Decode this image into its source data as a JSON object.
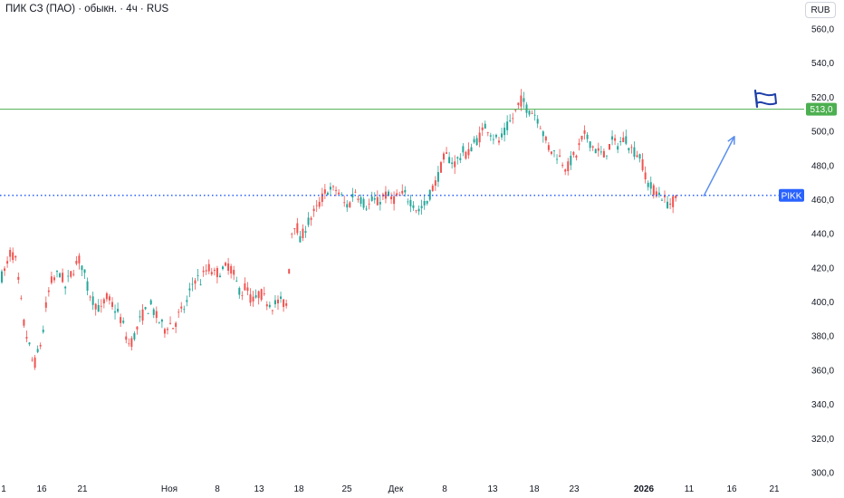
{
  "header": {
    "title": "ПИК СЗ (ПАО) · обыкн. · 4ч · RUS",
    "currency": "RUB"
  },
  "colors": {
    "up": "#26a69a",
    "down": "#ef5350",
    "resistance": "#4caf50",
    "support": "#2962ff",
    "arrow": "#5b8ff0",
    "flag": "#1e3fa8"
  },
  "icons": {
    "flag": "flag-icon"
  },
  "chart_data": {
    "type": "candlestick",
    "symbol_label": "PIKK",
    "y_axis": {
      "ticks": [
        "560,0",
        "540,0",
        "520,0",
        "500,0",
        "480,0",
        "460,0",
        "440,0",
        "420,0",
        "400,0",
        "380,0",
        "360,0",
        "340,0",
        "320,0",
        "300,0"
      ],
      "range": [
        300,
        560
      ]
    },
    "x_axis": {
      "ticks": [
        "1",
        "16",
        "21",
        "Ноя",
        "8",
        "13",
        "18",
        "25",
        "Дек",
        "8",
        "13",
        "18",
        "23",
        "2026",
        "11",
        "16",
        "21"
      ],
      "bold_ticks": [
        "2026"
      ]
    },
    "levels": [
      {
        "name": "resistance",
        "value": 513,
        "label": "513,0",
        "style": "solid"
      },
      {
        "name": "support",
        "value": 462.5,
        "label": "PIKK",
        "style": "dotted"
      }
    ],
    "projection_arrow": {
      "from": 462,
      "to": 497
    },
    "price_path": [
      [
        0,
        415
      ],
      [
        5,
        420
      ],
      [
        10,
        430
      ],
      [
        15,
        425
      ],
      [
        20,
        405
      ],
      [
        25,
        385
      ],
      [
        30,
        375
      ],
      [
        35,
        362
      ],
      [
        40,
        370
      ],
      [
        45,
        380
      ],
      [
        50,
        402
      ],
      [
        55,
        412
      ],
      [
        60,
        415
      ],
      [
        65,
        418
      ],
      [
        70,
        408
      ],
      [
        75,
        415
      ],
      [
        80,
        420
      ],
      [
        85,
        425
      ],
      [
        90,
        420
      ],
      [
        95,
        408
      ],
      [
        100,
        402
      ],
      [
        105,
        398
      ],
      [
        110,
        395
      ],
      [
        115,
        403
      ],
      [
        120,
        400
      ],
      [
        125,
        396
      ],
      [
        130,
        392
      ],
      [
        135,
        385
      ],
      [
        140,
        375
      ],
      [
        145,
        378
      ],
      [
        150,
        385
      ],
      [
        155,
        392
      ],
      [
        160,
        395
      ],
      [
        165,
        398
      ],
      [
        170,
        392
      ],
      [
        175,
        388
      ],
      [
        180,
        384
      ],
      [
        185,
        388
      ],
      [
        190,
        385
      ],
      [
        195,
        392
      ],
      [
        200,
        395
      ],
      [
        205,
        400
      ],
      [
        210,
        410
      ],
      [
        215,
        415
      ],
      [
        220,
        412
      ],
      [
        225,
        418
      ],
      [
        230,
        420
      ],
      [
        235,
        416
      ],
      [
        240,
        418
      ],
      [
        245,
        418
      ],
      [
        250,
        422
      ],
      [
        255,
        418
      ],
      [
        260,
        410
      ],
      [
        265,
        405
      ],
      [
        270,
        410
      ],
      [
        275,
        402
      ],
      [
        280,
        400
      ],
      [
        285,
        406
      ],
      [
        290,
        402
      ],
      [
        295,
        400
      ],
      [
        300,
        398
      ],
      [
        305,
        400
      ],
      [
        310,
        400
      ],
      [
        315,
        398
      ],
      [
        320,
        440
      ],
      [
        325,
        448
      ],
      [
        330,
        435
      ],
      [
        335,
        443
      ],
      [
        340,
        448
      ],
      [
        345,
        452
      ],
      [
        350,
        456
      ],
      [
        355,
        462
      ],
      [
        360,
        466
      ],
      [
        365,
        465
      ],
      [
        370,
        466
      ],
      [
        375,
        462
      ],
      [
        380,
        456
      ],
      [
        385,
        458
      ],
      [
        390,
        466
      ],
      [
        395,
        462
      ],
      [
        400,
        458
      ],
      [
        405,
        456
      ],
      [
        410,
        460
      ],
      [
        415,
        458
      ],
      [
        420,
        461
      ],
      [
        425,
        463
      ],
      [
        430,
        460
      ],
      [
        435,
        461
      ],
      [
        440,
        462
      ],
      [
        445,
        463
      ],
      [
        450,
        460
      ],
      [
        455,
        458
      ],
      [
        460,
        453
      ],
      [
        465,
        456
      ],
      [
        470,
        458
      ],
      [
        475,
        466
      ],
      [
        480,
        470
      ],
      [
        485,
        478
      ],
      [
        490,
        486
      ],
      [
        495,
        484
      ],
      [
        500,
        481
      ],
      [
        505,
        484
      ],
      [
        510,
        488
      ],
      [
        515,
        486
      ],
      [
        520,
        492
      ],
      [
        525,
        495
      ],
      [
        530,
        498
      ],
      [
        535,
        504
      ],
      [
        540,
        500
      ],
      [
        545,
        496
      ],
      [
        550,
        494
      ],
      [
        555,
        498
      ],
      [
        560,
        504
      ],
      [
        565,
        508
      ],
      [
        570,
        514
      ],
      [
        575,
        519
      ],
      [
        580,
        514
      ],
      [
        585,
        512
      ],
      [
        590,
        510
      ],
      [
        595,
        505
      ],
      [
        600,
        496
      ],
      [
        605,
        490
      ],
      [
        610,
        488
      ],
      [
        615,
        486
      ],
      [
        620,
        482
      ],
      [
        625,
        478
      ],
      [
        630,
        484
      ],
      [
        635,
        486
      ],
      [
        640,
        494
      ],
      [
        645,
        498
      ],
      [
        650,
        494
      ],
      [
        655,
        490
      ],
      [
        660,
        488
      ],
      [
        665,
        485
      ],
      [
        670,
        490
      ],
      [
        675,
        494
      ],
      [
        680,
        492
      ],
      [
        685,
        494
      ],
      [
        690,
        496
      ],
      [
        695,
        490
      ],
      [
        700,
        488
      ],
      [
        705,
        486
      ],
      [
        710,
        478
      ],
      [
        715,
        468
      ],
      [
        720,
        466
      ],
      [
        725,
        464
      ],
      [
        730,
        462
      ],
      [
        735,
        458
      ],
      [
        740,
        458
      ],
      [
        745,
        460
      ]
    ]
  }
}
